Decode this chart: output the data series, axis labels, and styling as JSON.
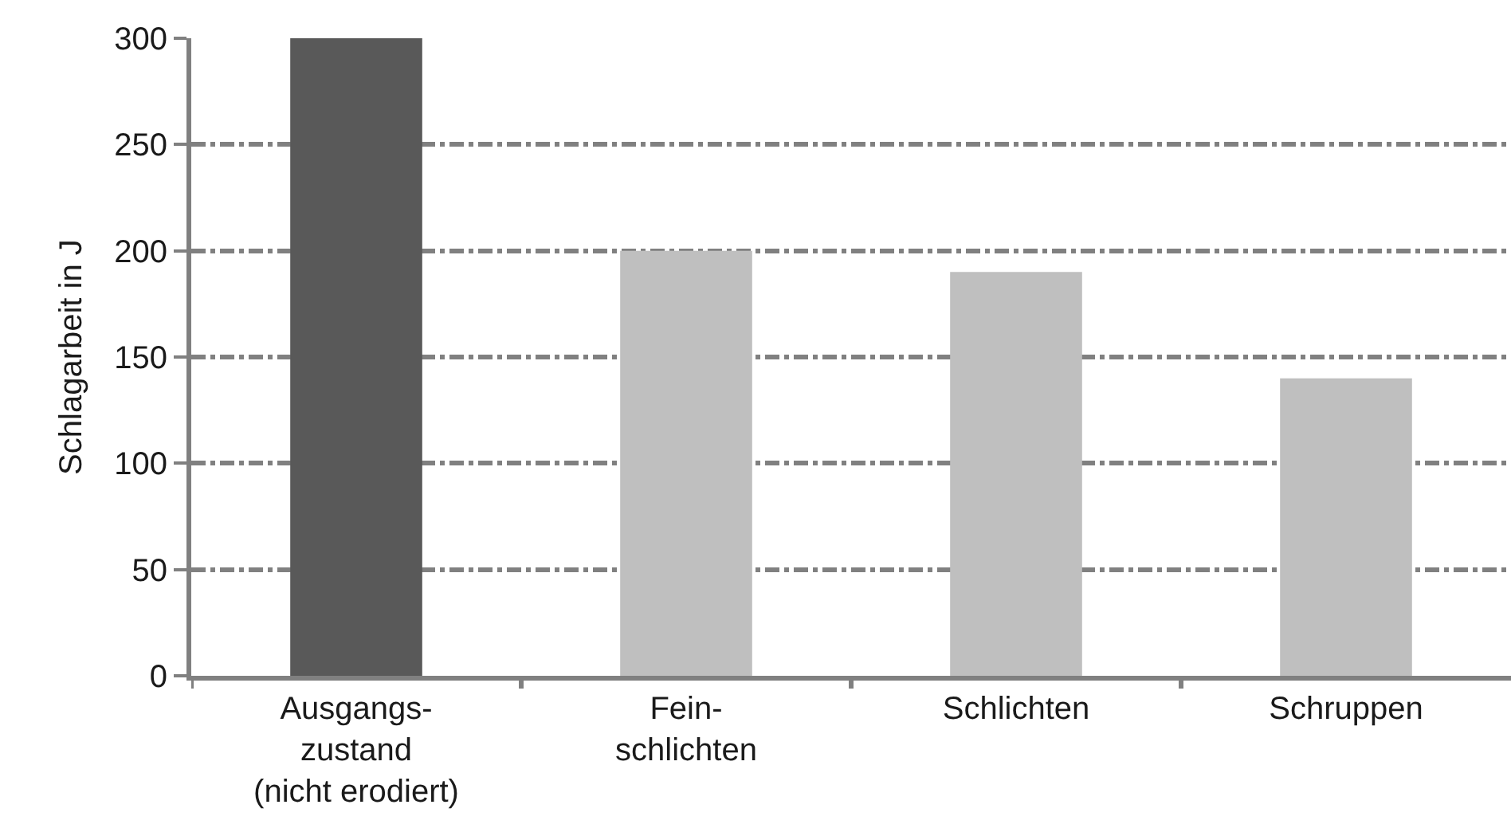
{
  "chart_data": {
    "type": "bar",
    "ylabel": "Schlagarbeit in J",
    "categories": [
      "Ausgangs-\nzustand\n(nicht erodiert)",
      "Fein-\nschlichten",
      "Schlichten",
      "Schruppen"
    ],
    "values": [
      300,
      200,
      190,
      140
    ],
    "colors": [
      "#595959",
      "#bfbfbf",
      "#bfbfbf",
      "#bfbfbf"
    ],
    "ylim": [
      0,
      300
    ],
    "yticks": [
      0,
      50,
      100,
      150,
      200,
      250,
      300
    ],
    "grid": "y"
  }
}
